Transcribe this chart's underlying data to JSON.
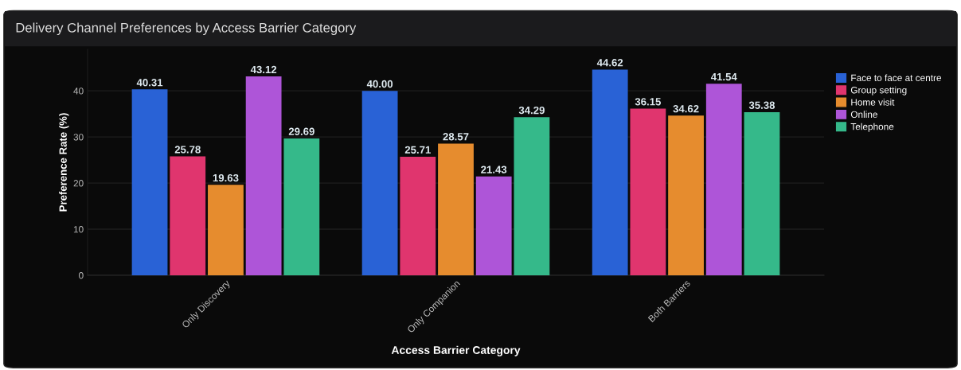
{
  "chart_data": {
    "type": "bar",
    "title": "Delivery Channel Preferences by Access Barrier Category",
    "xlabel": "Access Barrier Category",
    "ylabel": "Preference Rate (%)",
    "categories": [
      "Only Discovery",
      "Only Companion",
      "Both Barriers"
    ],
    "series": [
      {
        "name": "Face to face at centre",
        "color": "#2962d6",
        "values": [
          40.31,
          40.0,
          44.62
        ],
        "value_labels": [
          "40.31",
          "40.00",
          "44.62"
        ]
      },
      {
        "name": "Group setting",
        "color": "#e0356e",
        "values": [
          25.78,
          25.71,
          36.15
        ],
        "value_labels": [
          "25.78",
          "25.71",
          "36.15"
        ]
      },
      {
        "name": "Home visit",
        "color": "#e68c2e",
        "values": [
          19.63,
          28.57,
          34.62
        ],
        "value_labels": [
          "19.63",
          "28.57",
          "34.62"
        ]
      },
      {
        "name": "Online",
        "color": "#ae55d8",
        "values": [
          43.12,
          21.43,
          41.54
        ],
        "value_labels": [
          "43.12",
          "21.43",
          "41.54"
        ]
      },
      {
        "name": "Telephone",
        "color": "#35b98a",
        "values": [
          29.69,
          34.29,
          35.38
        ],
        "value_labels": [
          "29.69",
          "34.29",
          "35.38"
        ]
      }
    ],
    "ylim": [
      0,
      49
    ],
    "yticks": [
      0,
      10,
      20,
      30,
      40
    ],
    "grid": "y",
    "legend": "top right"
  }
}
